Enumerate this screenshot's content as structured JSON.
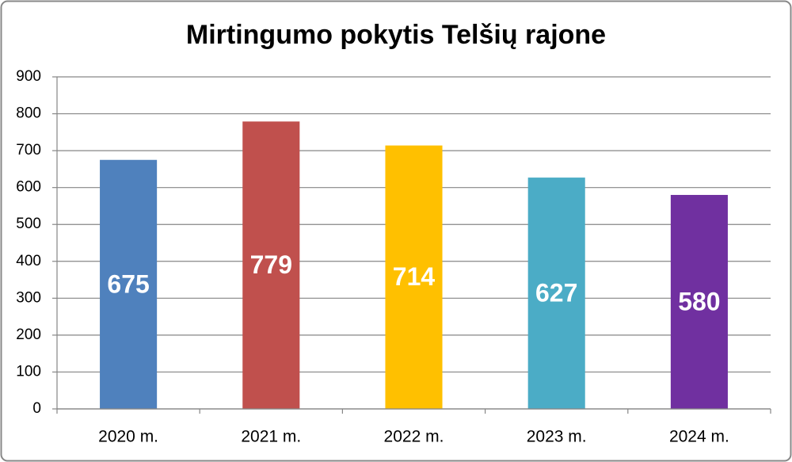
{
  "chart_data": {
    "type": "bar",
    "title": "Mirtingumo pokytis Telšių rajone",
    "categories": [
      "2020 m.",
      "2021 m.",
      "2022 m.",
      "2023 m.",
      "2024 m."
    ],
    "values": [
      675,
      779,
      714,
      627,
      580
    ],
    "colors": [
      "#4f81bd",
      "#c0504d",
      "#ffc000",
      "#4bacc6",
      "#7030a0"
    ],
    "ylim": [
      0,
      900
    ],
    "yticks": [
      0,
      100,
      200,
      300,
      400,
      500,
      600,
      700,
      800,
      900
    ],
    "grid": true
  }
}
